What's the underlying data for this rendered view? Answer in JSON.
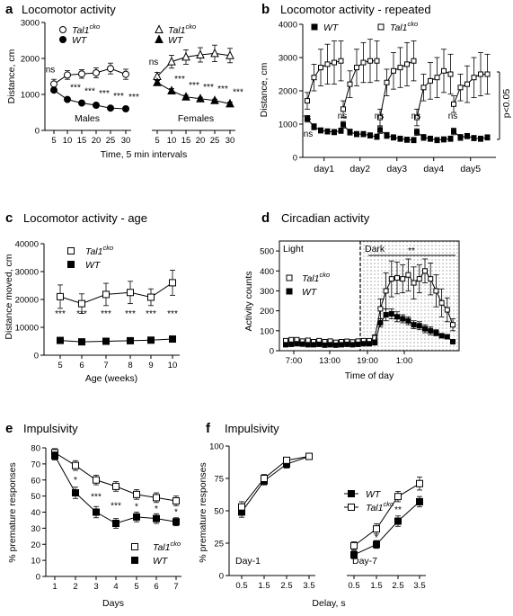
{
  "chart_data": [
    {
      "id": "a",
      "panel_label": "a",
      "type": "line",
      "title": "Locomotor activity",
      "xlabel": "Time, 5 min intervals",
      "ylabel": "Distance, cm",
      "ylim": [
        0,
        3000
      ],
      "yticks": [
        "0",
        "1000",
        "2000",
        "3000"
      ],
      "x": [
        5,
        10,
        15,
        20,
        25,
        30
      ],
      "groups": [
        {
          "label": "Males",
          "series": [
            {
              "name": "Tal1cko",
              "marker": "open-circle",
              "values": [
                1290,
                1540,
                1570,
                1600,
                1720,
                1560
              ],
              "errors": [
                130,
                120,
                120,
                140,
                150,
                140
              ]
            },
            {
              "name": "WT",
              "marker": "filled-circle",
              "values": [
                1120,
                860,
                760,
                700,
                620,
                600
              ],
              "errors": [
                60,
                50,
                40,
                40,
                40,
                40
              ]
            }
          ],
          "annotations": [
            "ns",
            "***",
            "***",
            "***",
            "***",
            "***"
          ]
        },
        {
          "label": "Females",
          "series": [
            {
              "name": "Tal1cko",
              "marker": "open-triangle",
              "values": [
                1500,
                1910,
                2040,
                2100,
                2140,
                2080
              ],
              "errors": [
                110,
                180,
                200,
                200,
                230,
                200
              ]
            },
            {
              "name": "WT",
              "marker": "filled-triangle",
              "values": [
                1330,
                1100,
                930,
                880,
                830,
                740
              ],
              "errors": [
                60,
                60,
                50,
                40,
                40,
                50
              ]
            }
          ],
          "annotations": [
            "ns",
            "***",
            "***",
            "***",
            "***",
            "***"
          ]
        }
      ],
      "legend": [
        {
          "marker": "open-circle",
          "name": "Tal1",
          "sup": "cko"
        },
        {
          "marker": "filled-circle",
          "name": "WT",
          "sup": ""
        },
        {
          "marker": "open-triangle",
          "name": "Tal1",
          "sup": "cko"
        },
        {
          "marker": "filled-triangle",
          "name": "WT",
          "sup": ""
        }
      ]
    },
    {
      "id": "b",
      "panel_label": "b",
      "type": "line",
      "title": "Locomotor activity - repeated",
      "xlabel": "",
      "ylabel": "Distance, cm",
      "ylim": [
        0,
        4000
      ],
      "yticks": [
        "0",
        "1000",
        "2000",
        "3000",
        "4000"
      ],
      "categories": [
        "day1",
        "day2",
        "day3",
        "day4",
        "day5"
      ],
      "series": [
        {
          "name": "WT",
          "marker": "filled-square",
          "days": [
            [
              1160,
              920,
              810,
              780,
              760,
              800
            ],
            [
              980,
              760,
              700,
              700,
              660,
              620
            ],
            [
              820,
              660,
              600,
              560,
              530,
              520
            ],
            [
              760,
              600,
              560,
              520,
              540,
              560
            ],
            [
              780,
              600,
              640,
              580,
              560,
              600
            ]
          ]
        },
        {
          "name": "Tal1cko",
          "marker": "open-square",
          "days": [
            [
              1700,
              2400,
              2700,
              2800,
              2850,
              2900
            ],
            [
              1450,
              2200,
              2700,
              2850,
              2900,
              2900
            ],
            [
              1200,
              2250,
              2600,
              2700,
              2800,
              2900
            ],
            [
              1200,
              2100,
              2300,
              2400,
              2600,
              2500
            ],
            [
              1600,
              2100,
              2200,
              2400,
              2500,
              2500
            ]
          ]
        }
      ],
      "annotations": [
        "ns",
        "ns",
        "ns",
        "ns",
        "ns",
        "ns"
      ],
      "side_label": "p<0.05",
      "legend": [
        {
          "marker": "filled-square",
          "name": "WT",
          "sup": ""
        },
        {
          "marker": "open-square",
          "name": "Tal1",
          "sup": "cko"
        }
      ]
    },
    {
      "id": "c",
      "panel_label": "c",
      "type": "line",
      "title": "Locomotor activity - age",
      "xlabel": "Age (weeks)",
      "ylabel": "Distance moved, cm",
      "ylim": [
        0,
        40000
      ],
      "yticks": [
        "0",
        "10000",
        "20000",
        "30000",
        "40000"
      ],
      "x": [
        5,
        6,
        7,
        8,
        9,
        10
      ],
      "series": [
        {
          "name": "Tal1cko",
          "marker": "open-square",
          "values": [
            21000,
            18500,
            21800,
            22500,
            20800,
            26000
          ],
          "errors": [
            4200,
            3500,
            4000,
            4000,
            3000,
            4500
          ]
        },
        {
          "name": "WT",
          "marker": "filled-square",
          "values": [
            5300,
            4800,
            5000,
            5200,
            5400,
            5800
          ],
          "errors": [
            400,
            300,
            300,
            300,
            300,
            300
          ]
        }
      ],
      "annotations": [
        "***",
        "***",
        "***",
        "***",
        "***",
        "***"
      ],
      "legend": [
        {
          "marker": "open-square",
          "name": "Tal1",
          "sup": "cko"
        },
        {
          "marker": "filled-square",
          "name": "WT",
          "sup": ""
        }
      ]
    },
    {
      "id": "d",
      "panel_label": "d",
      "type": "line",
      "title": "Circadian activity",
      "xlabel": "Time of day",
      "ylabel": "Activity counts",
      "ylim": [
        0,
        550
      ],
      "yticks": [
        "0",
        "100",
        "200",
        "300",
        "400",
        "500"
      ],
      "xticks": [
        "7:00",
        "13:00",
        "19:00",
        "1:00"
      ],
      "regions": [
        "Light",
        "Dark"
      ],
      "significance": "**",
      "series": [
        {
          "name": "Tal1cko",
          "marker": "open-square",
          "values": [
            50,
            55,
            55,
            48,
            52,
            45,
            50,
            45,
            48,
            42,
            45,
            47,
            44,
            48,
            50,
            50,
            65,
            210,
            300,
            360,
            365,
            360,
            380,
            340,
            360,
            400,
            360,
            300,
            240,
            205,
            130
          ],
          "errors": [
            10,
            10,
            10,
            10,
            10,
            10,
            10,
            10,
            10,
            10,
            10,
            10,
            10,
            10,
            10,
            10,
            15,
            50,
            90,
            90,
            80,
            70,
            80,
            80,
            70,
            60,
            80,
            80,
            70,
            60,
            30
          ]
        },
        {
          "name": "WT",
          "marker": "filled-square",
          "values": [
            30,
            32,
            35,
            33,
            30,
            30,
            32,
            28,
            30,
            28,
            30,
            32,
            30,
            32,
            35,
            35,
            40,
            140,
            180,
            185,
            170,
            160,
            150,
            130,
            125,
            110,
            100,
            90,
            75,
            70,
            45
          ],
          "errors": [
            5,
            5,
            5,
            5,
            5,
            5,
            5,
            5,
            5,
            5,
            5,
            5,
            5,
            5,
            5,
            5,
            8,
            20,
            30,
            25,
            25,
            20,
            20,
            20,
            20,
            20,
            20,
            15,
            10,
            10,
            5
          ]
        }
      ],
      "legend": [
        {
          "marker": "open-square",
          "name": "Tal1",
          "sup": "cko"
        },
        {
          "marker": "filled-square",
          "name": "WT",
          "sup": ""
        }
      ]
    },
    {
      "id": "e",
      "panel_label": "e",
      "type": "line",
      "title": "Impulsivity",
      "xlabel": "Days",
      "ylabel": "% premature responses",
      "ylim": [
        0,
        80
      ],
      "yticks": [
        "0",
        "10",
        "20",
        "30",
        "40",
        "50",
        "60",
        "70",
        "80"
      ],
      "x": [
        1,
        2,
        3,
        4,
        5,
        6,
        7
      ],
      "series": [
        {
          "name": "Tal1cko",
          "marker": "open-square",
          "values": [
            77,
            69,
            60,
            56,
            51,
            49,
            47
          ],
          "errors": [
            2.5,
            3,
            3,
            3,
            3,
            3,
            3
          ]
        },
        {
          "name": "WT",
          "marker": "filled-square",
          "values": [
            75,
            52,
            40,
            33,
            37,
            36,
            34
          ],
          "errors": [
            2.5,
            3.5,
            3.5,
            3,
            3,
            3,
            2.5
          ]
        }
      ],
      "annotations": [
        "",
        "*",
        "***",
        "***",
        "*",
        "*",
        "*"
      ],
      "legend": [
        {
          "marker": "open-square",
          "name": "Tal1",
          "sup": "cko"
        },
        {
          "marker": "filled-square",
          "name": "WT",
          "sup": ""
        }
      ]
    },
    {
      "id": "f",
      "panel_label": "f",
      "type": "line",
      "title": "Impulsivity",
      "xlabel": "Delay, s",
      "ylabel": "% premature responses",
      "ylim": [
        0,
        100
      ],
      "yticks": [
        "0",
        "25",
        "50",
        "75",
        "100"
      ],
      "x": [
        0.5,
        1.5,
        2.5,
        3.5
      ],
      "groups": [
        {
          "label": "Day-1",
          "series": [
            {
              "name": "WT",
              "marker": "filled-square",
              "values": [
                49,
                73,
                86,
                92
              ],
              "errors": [
                4,
                3,
                3,
                2
              ]
            },
            {
              "name": "Tal1cko",
              "marker": "open-square",
              "values": [
                53,
                75,
                89,
                92
              ],
              "errors": [
                4,
                3,
                2,
                2
              ]
            }
          ],
          "annotations": [
            "",
            "",
            "",
            ""
          ]
        },
        {
          "label": "Day-7",
          "series": [
            {
              "name": "WT",
              "marker": "filled-square",
              "values": [
                16,
                24,
                42,
                57
              ],
              "errors": [
                3,
                3,
                4,
                4
              ]
            },
            {
              "name": "Tal1cko",
              "marker": "open-square",
              "values": [
                23,
                36,
                61,
                71
              ],
              "errors": [
                3,
                4,
                4,
                5
              ]
            }
          ],
          "annotations": [
            "",
            "*",
            "**",
            ""
          ]
        }
      ],
      "legend": [
        {
          "marker": "filled-square",
          "name": "WT",
          "sup": ""
        },
        {
          "marker": "open-square",
          "name": "Tal1",
          "sup": "cko"
        }
      ]
    }
  ]
}
